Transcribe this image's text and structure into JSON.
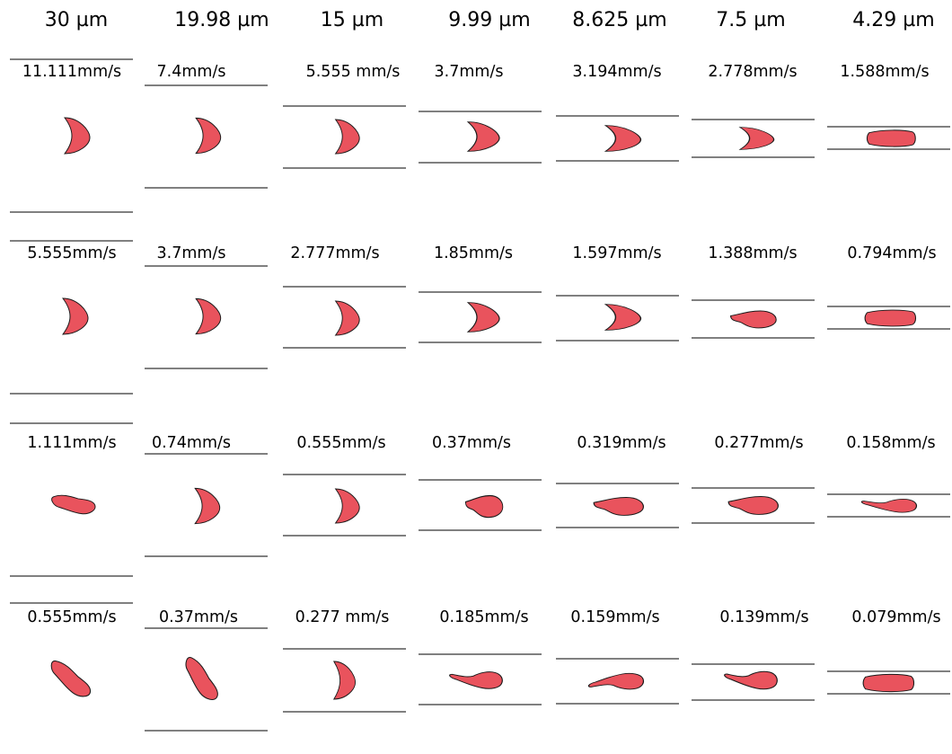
{
  "colors": {
    "cell": "#e9535d",
    "cell_outline": "#1a1a1a",
    "wall": "#000000"
  },
  "columns": [
    {
      "diameter": "30 µm",
      "velocities": [
        "11.111mm/s",
        "5.555mm/s",
        "1.111mm/s",
        "0.555mm/s"
      ]
    },
    {
      "diameter": "19.98 µm",
      "velocities": [
        "7.4mm/s",
        "3.7mm/s",
        "0.74mm/s",
        "0.37mm/s"
      ]
    },
    {
      "diameter": "15 µm",
      "velocities": [
        "5.555 mm/s",
        "2.777mm/s",
        "0.555mm/s",
        "0.277 mm/s"
      ]
    },
    {
      "diameter": "9.99 µm",
      "velocities": [
        "3.7mm/s",
        "1.85mm/s",
        "0.37mm/s",
        "0.185mm/s"
      ]
    },
    {
      "diameter": "8.625 µm",
      "velocities": [
        "3.194mm/s",
        "1.597mm/s",
        "0.319mm/s",
        "0.159mm/s"
      ]
    },
    {
      "diameter": "7.5 µm",
      "velocities": [
        "2.778mm/s",
        "1.388mm/s",
        "0.277mm/s",
        "0.139mm/s"
      ]
    },
    {
      "diameter": "4.29 µm",
      "velocities": [
        "1.588mm/s",
        "0.794mm/s",
        "0.158mm/s",
        "0.079mm/s"
      ]
    }
  ]
}
